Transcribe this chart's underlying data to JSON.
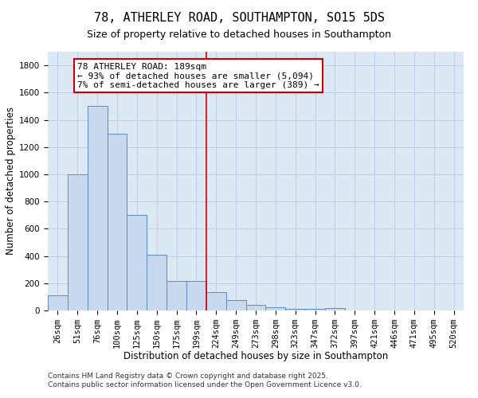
{
  "title": "78, ATHERLEY ROAD, SOUTHAMPTON, SO15 5DS",
  "subtitle": "Size of property relative to detached houses in Southampton",
  "xlabel": "Distribution of detached houses by size in Southampton",
  "ylabel": "Number of detached properties",
  "bar_color": "#c8d8ee",
  "bar_edge_color": "#5b8cc8",
  "background_color": "#ffffff",
  "plot_bg_color": "#dde8f5",
  "grid_color": "#b8cce4",
  "vline_color": "#cc0000",
  "categories": [
    "26sqm",
    "51sqm",
    "76sqm",
    "100sqm",
    "125sqm",
    "150sqm",
    "175sqm",
    "199sqm",
    "224sqm",
    "249sqm",
    "273sqm",
    "298sqm",
    "323sqm",
    "347sqm",
    "372sqm",
    "397sqm",
    "421sqm",
    "446sqm",
    "471sqm",
    "495sqm",
    "520sqm"
  ],
  "values": [
    110,
    1000,
    1500,
    1300,
    700,
    410,
    215,
    215,
    135,
    75,
    40,
    25,
    10,
    10,
    20,
    0,
    0,
    0,
    0,
    0,
    0
  ],
  "ylim": [
    0,
    1900
  ],
  "yticks": [
    0,
    200,
    400,
    600,
    800,
    1000,
    1200,
    1400,
    1600,
    1800
  ],
  "vline_position": 7.5,
  "annotation_title": "78 ATHERLEY ROAD: 189sqm",
  "annotation_line1": "← 93% of detached houses are smaller (5,094)",
  "annotation_line2": "7% of semi-detached houses are larger (389) →",
  "footer_line1": "Contains HM Land Registry data © Crown copyright and database right 2025.",
  "footer_line2": "Contains public sector information licensed under the Open Government Licence v3.0.",
  "title_fontsize": 11,
  "subtitle_fontsize": 9,
  "axis_label_fontsize": 8.5,
  "tick_fontsize": 7.5,
  "annotation_fontsize": 8,
  "footer_fontsize": 6.5
}
